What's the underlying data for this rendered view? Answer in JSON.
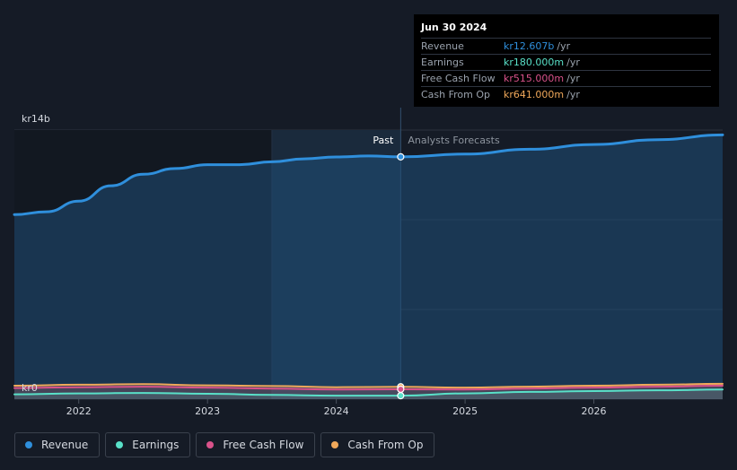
{
  "tooltip": {
    "date": "Jun 30 2024",
    "rows": [
      {
        "label": "Revenue",
        "value": "kr12.607b",
        "unit": "/yr",
        "color": "#2f8fdc"
      },
      {
        "label": "Earnings",
        "value": "kr180.000m",
        "unit": "/yr",
        "color": "#59e0c8"
      },
      {
        "label": "Free Cash Flow",
        "value": "kr515.000m",
        "unit": "/yr",
        "color": "#d9528a"
      },
      {
        "label": "Cash From Op",
        "value": "kr641.000m",
        "unit": "/yr",
        "color": "#f0a85a"
      }
    ]
  },
  "legend": [
    {
      "label": "Revenue",
      "color": "#2f8fdc"
    },
    {
      "label": "Earnings",
      "color": "#59e0c8"
    },
    {
      "label": "Free Cash Flow",
      "color": "#d9528a"
    },
    {
      "label": "Cash From Op",
      "color": "#f0a85a"
    }
  ],
  "chart_data": {
    "type": "line",
    "y_top_label": "kr14b",
    "y_bottom_label": "kr0",
    "ylim": [
      0,
      14
    ],
    "xlim": [
      2021.5,
      2027.0
    ],
    "x_ticks": [
      2022,
      2023,
      2024,
      2025,
      2026
    ],
    "x_tick_labels": [
      "2022",
      "2023",
      "2024",
      "2025",
      "2026"
    ],
    "divider_x": 2024.5,
    "highlight_start_x": 2023.5,
    "past_label": "Past",
    "forecast_label": "Analysts Forecasts",
    "grid": true,
    "series": [
      {
        "name": "Revenue",
        "color": "#2f8fdc",
        "area": true,
        "x": [
          2021.5,
          2021.75,
          2022.0,
          2022.25,
          2022.5,
          2022.75,
          2023.0,
          2023.25,
          2023.5,
          2023.75,
          2024.0,
          2024.25,
          2024.5,
          2025.0,
          2025.5,
          2026.0,
          2026.5,
          2027.0
        ],
        "values": [
          9.6,
          9.75,
          10.3,
          11.1,
          11.7,
          12.0,
          12.2,
          12.2,
          12.35,
          12.5,
          12.6,
          12.65,
          12.607,
          12.75,
          13.0,
          13.25,
          13.5,
          13.75
        ]
      },
      {
        "name": "Cash From Op",
        "color": "#f0a85a",
        "area": false,
        "x": [
          2021.5,
          2022.0,
          2022.5,
          2023.0,
          2023.5,
          2024.0,
          2024.5,
          2025.0,
          2025.5,
          2026.0,
          2026.5,
          2027.0
        ],
        "values": [
          0.7,
          0.75,
          0.78,
          0.72,
          0.68,
          0.62,
          0.641,
          0.6,
          0.65,
          0.7,
          0.75,
          0.8
        ]
      },
      {
        "name": "Free Cash Flow",
        "color": "#d9528a",
        "area": false,
        "x": [
          2021.5,
          2022.0,
          2022.5,
          2023.0,
          2023.5,
          2024.0,
          2024.5,
          2025.0,
          2025.5,
          2026.0,
          2026.5,
          2027.0
        ],
        "values": [
          0.58,
          0.62,
          0.65,
          0.6,
          0.55,
          0.5,
          0.515,
          0.5,
          0.55,
          0.6,
          0.65,
          0.7
        ]
      },
      {
        "name": "Earnings",
        "color": "#59e0c8",
        "area": false,
        "x": [
          2021.5,
          2022.0,
          2022.5,
          2023.0,
          2023.5,
          2024.0,
          2024.5,
          2025.0,
          2025.5,
          2026.0,
          2026.5,
          2027.0
        ],
        "values": [
          0.25,
          0.3,
          0.32,
          0.28,
          0.22,
          0.18,
          0.18,
          0.3,
          0.38,
          0.42,
          0.46,
          0.5
        ]
      }
    ]
  }
}
